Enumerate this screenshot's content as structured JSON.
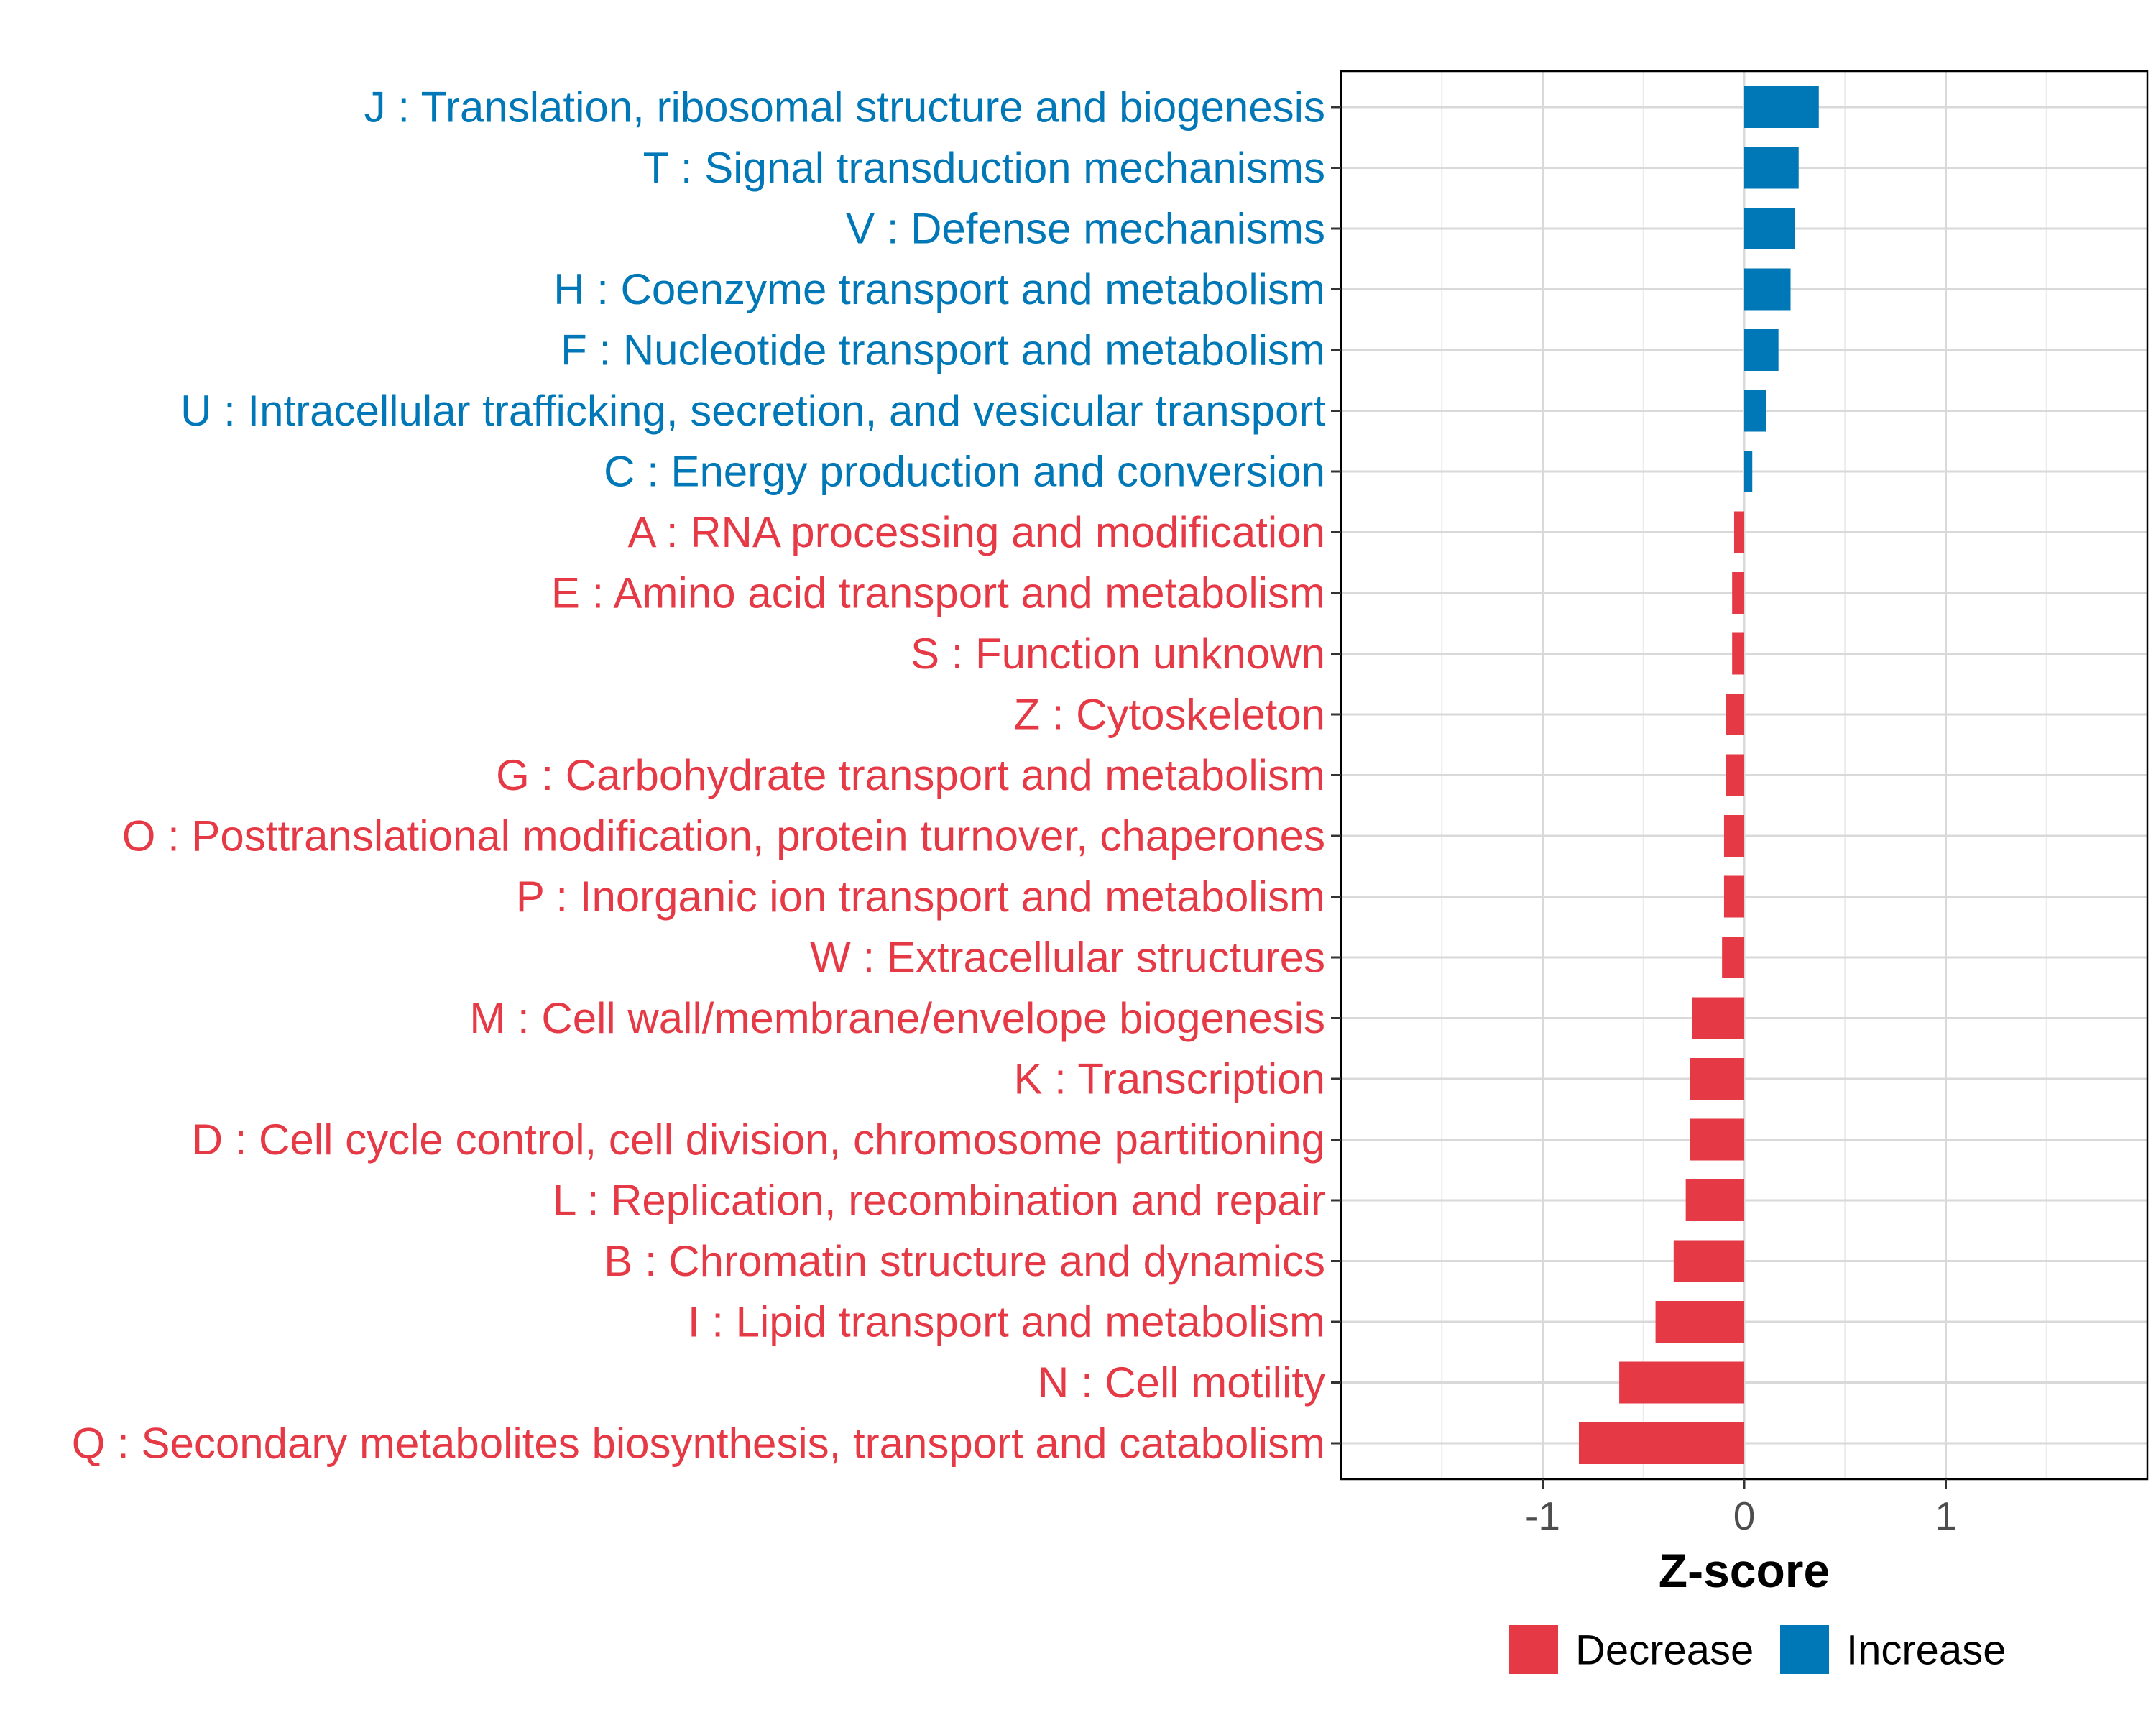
{
  "chart_data": {
    "type": "bar",
    "orientation": "horizontal",
    "xlabel": "Z-score",
    "xlim": [
      -2,
      2
    ],
    "xticks": [
      -1,
      0,
      1
    ],
    "grid": true,
    "legend_position": "bottom",
    "colors": {
      "Decrease": "#E63946",
      "Increase": "#0077B6"
    },
    "legend": [
      {
        "label": "Decrease",
        "color": "#E63946"
      },
      {
        "label": "Increase",
        "color": "#0077B6"
      }
    ],
    "categories": [
      "J : Translation, ribosomal structure and biogenesis",
      "T : Signal transduction mechanisms",
      "V : Defense mechanisms",
      "H : Coenzyme transport and metabolism",
      "F : Nucleotide transport and metabolism",
      "U : Intracellular trafficking, secretion, and vesicular transport",
      "C : Energy production and conversion",
      "A : RNA processing and modification",
      "E : Amino acid transport and metabolism",
      "S : Function unknown",
      "Z : Cytoskeleton",
      "G : Carbohydrate transport and metabolism",
      "O : Posttranslational modification, protein turnover, chaperones",
      "P : Inorganic ion transport and metabolism",
      "W : Extracellular structures",
      "M : Cell wall/membrane/envelope biogenesis",
      "K : Transcription",
      "D : Cell cycle control, cell division, chromosome partitioning",
      "L : Replication, recombination and repair",
      "B : Chromatin structure and dynamics",
      "I : Lipid transport and metabolism",
      "N : Cell motility",
      "Q : Secondary metabolites biosynthesis, transport and catabolism"
    ],
    "values": [
      0.37,
      0.27,
      0.25,
      0.23,
      0.17,
      0.11,
      0.04,
      -0.05,
      -0.06,
      -0.06,
      -0.09,
      -0.09,
      -0.1,
      -0.1,
      -0.11,
      -0.26,
      -0.27,
      -0.27,
      -0.29,
      -0.35,
      -0.44,
      -0.62,
      -0.82
    ],
    "direction": [
      "Increase",
      "Increase",
      "Increase",
      "Increase",
      "Increase",
      "Increase",
      "Increase",
      "Decrease",
      "Decrease",
      "Decrease",
      "Decrease",
      "Decrease",
      "Decrease",
      "Decrease",
      "Decrease",
      "Decrease",
      "Decrease",
      "Decrease",
      "Decrease",
      "Decrease",
      "Decrease",
      "Decrease",
      "Decrease"
    ]
  }
}
